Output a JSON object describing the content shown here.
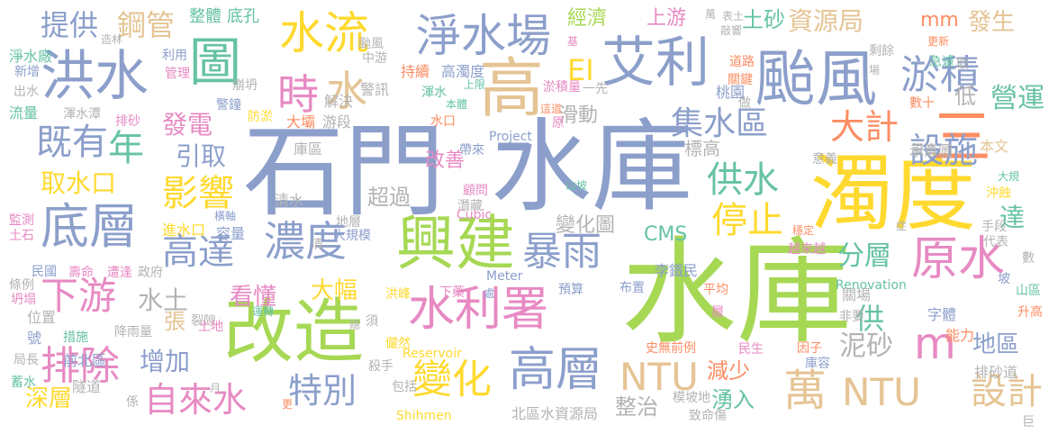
{
  "palette": {
    "blue": "#8c9fcb",
    "green": "#a6d854",
    "yellow": "#ffd92f",
    "orange": "#fc8d62",
    "pink": "#e78ac3",
    "teal": "#66c2a5",
    "tan": "#e5c494",
    "gray": "#b3b3b3"
  },
  "words": [
    {
      "text": "石門",
      "color": "blue"
    },
    {
      "text": "水庫",
      "color": "blue"
    },
    {
      "text": "水庫",
      "color": "green"
    },
    {
      "text": "濁度",
      "color": "yellow"
    },
    {
      "text": "改造",
      "color": "green"
    },
    {
      "text": "興建",
      "color": "green"
    },
    {
      "text": "颱風",
      "color": "blue"
    },
    {
      "text": "艾利",
      "color": "blue"
    },
    {
      "text": "水利署",
      "color": "pink"
    },
    {
      "text": "淨水場",
      "color": "blue"
    },
    {
      "text": "洪水",
      "color": "blue"
    },
    {
      "text": "圖",
      "color": "teal"
    },
    {
      "text": "高",
      "color": "tan"
    },
    {
      "text": "水流",
      "color": "yellow"
    },
    {
      "text": "淤積",
      "color": "blue"
    },
    {
      "text": "底層",
      "color": "blue"
    },
    {
      "text": "原水",
      "color": "pink"
    },
    {
      "text": "m",
      "color": "pink"
    },
    {
      "text": "高層",
      "color": "blue"
    },
    {
      "text": "暴雨",
      "color": "blue"
    },
    {
      "text": "濃度",
      "color": "blue"
    },
    {
      "text": "三",
      "color": "orange"
    },
    {
      "text": "時",
      "color": "pink"
    },
    {
      "text": "水",
      "color": "tan"
    },
    {
      "text": "年",
      "color": "teal"
    },
    {
      "text": "既有",
      "color": "blue"
    },
    {
      "text": "排除",
      "color": "pink"
    },
    {
      "text": "下游",
      "color": "pink"
    },
    {
      "text": "變化",
      "color": "yellow"
    },
    {
      "text": "NTU",
      "color": "tan"
    },
    {
      "text": "NTU",
      "color": "tan"
    },
    {
      "text": "設計",
      "color": "tan"
    },
    {
      "text": "萬",
      "color": "tan"
    },
    {
      "text": "影響",
      "color": "yellow"
    },
    {
      "text": "高達",
      "color": "blue"
    },
    {
      "text": "自來水",
      "color": "pink"
    },
    {
      "text": "特別",
      "color": "blue"
    },
    {
      "text": "停止",
      "color": "yellow"
    },
    {
      "text": "供水",
      "color": "teal"
    },
    {
      "text": "集水區",
      "color": "blue"
    },
    {
      "text": "大計",
      "color": "orange"
    },
    {
      "text": "設施",
      "color": "blue"
    },
    {
      "text": "提供",
      "color": "blue"
    },
    {
      "text": "鋼管",
      "color": "tan"
    },
    {
      "text": "經濟",
      "color": "green"
    },
    {
      "text": "上游",
      "color": "pink"
    },
    {
      "text": "土砂",
      "color": "teal"
    },
    {
      "text": "資源局",
      "color": "tan"
    },
    {
      "text": "mm",
      "color": "orange"
    },
    {
      "text": "發生",
      "color": "tan"
    },
    {
      "text": "發電",
      "color": "pink"
    },
    {
      "text": "引取",
      "color": "blue"
    },
    {
      "text": "取水口",
      "color": "yellow"
    },
    {
      "text": "水土",
      "color": "gray"
    },
    {
      "text": "增加",
      "color": "blue"
    },
    {
      "text": "深層",
      "color": "yellow"
    },
    {
      "text": "看懂",
      "color": "pink"
    },
    {
      "text": "大幅",
      "color": "yellow"
    },
    {
      "text": "分層",
      "color": "teal"
    },
    {
      "text": "泥砂",
      "color": "gray"
    },
    {
      "text": "地區",
      "color": "blue"
    },
    {
      "text": "排砂道",
      "color": "gray"
    },
    {
      "text": "減少",
      "color": "orange"
    },
    {
      "text": "湧入",
      "color": "teal"
    },
    {
      "text": "整治",
      "color": "gray"
    },
    {
      "text": "變化圖",
      "color": "gray"
    },
    {
      "text": "CMS",
      "color": "teal"
    },
    {
      "text": "滑動",
      "color": "gray"
    },
    {
      "text": "營運",
      "color": "teal"
    },
    {
      "text": "達",
      "color": "teal"
    },
    {
      "text": "供",
      "color": "teal"
    },
    {
      "text": "低",
      "color": "gray"
    },
    {
      "text": "EI",
      "color": "yellow"
    },
    {
      "text": "超過",
      "color": "gray"
    },
    {
      "text": "改善",
      "color": "pink"
    },
    {
      "text": "張",
      "color": "tan"
    },
    {
      "text": "標高",
      "color": "gray"
    },
    {
      "text": "Project",
      "color": "blue"
    },
    {
      "text": "Reservoir",
      "color": "yellow"
    },
    {
      "text": "Renovation",
      "color": "teal"
    },
    {
      "text": "Shihmen",
      "color": "yellow"
    },
    {
      "text": "Meter",
      "color": "blue"
    },
    {
      "text": "Cubic",
      "color": "pink"
    },
    {
      "text": "北區水資源局",
      "color": "gray"
    },
    {
      "text": "整體",
      "color": "teal"
    },
    {
      "text": "底孔",
      "color": "teal"
    },
    {
      "text": "淨水廠",
      "color": "teal"
    },
    {
      "text": "新增",
      "color": "blue"
    },
    {
      "text": "出水",
      "color": "gray"
    },
    {
      "text": "流量",
      "color": "teal"
    },
    {
      "text": "渾水潭",
      "color": "gray"
    },
    {
      "text": "排砂",
      "color": "pink"
    },
    {
      "text": "監測",
      "color": "pink"
    },
    {
      "text": "土石",
      "color": "pink"
    },
    {
      "text": "民國",
      "color": "blue"
    },
    {
      "text": "條例",
      "color": "gray"
    },
    {
      "text": "坍塌",
      "color": "pink"
    },
    {
      "text": "位置",
      "color": "gray"
    },
    {
      "text": "號",
      "color": "blue"
    },
    {
      "text": "局長",
      "color": "gray"
    },
    {
      "text": "蓄水",
      "color": "teal"
    },
    {
      "text": "措施",
      "color": "teal"
    },
    {
      "text": "前北區",
      "color": "blue"
    },
    {
      "text": "隧道",
      "color": "gray"
    },
    {
      "text": "降雨量",
      "color": "gray"
    },
    {
      "text": "壽命",
      "color": "pink"
    },
    {
      "text": "遭逢",
      "color": "pink"
    },
    {
      "text": "政府",
      "color": "gray"
    },
    {
      "text": "進水口",
      "color": "yellow"
    },
    {
      "text": "容量",
      "color": "blue"
    },
    {
      "text": "橫軸",
      "color": "blue"
    },
    {
      "text": "清水",
      "color": "gray"
    },
    {
      "text": "解決",
      "color": "gray"
    },
    {
      "text": "防淤",
      "color": "yellow"
    },
    {
      "text": "大壩",
      "color": "orange"
    },
    {
      "text": "游段",
      "color": "gray"
    },
    {
      "text": "庫區",
      "color": "gray"
    },
    {
      "text": "警訊",
      "color": "gray"
    },
    {
      "text": "持續",
      "color": "orange"
    },
    {
      "text": "高濁度",
      "color": "blue"
    },
    {
      "text": "渾水",
      "color": "teal"
    },
    {
      "text": "上限",
      "color": "teal"
    },
    {
      "text": "水口",
      "color": "orange"
    },
    {
      "text": "崩坍",
      "color": "gray"
    },
    {
      "text": "利用",
      "color": "blue"
    },
    {
      "text": "管理",
      "color": "pink"
    },
    {
      "text": "造林",
      "color": "gray"
    },
    {
      "text": "警鐘",
      "color": "blue"
    },
    {
      "text": "颱風",
      "color": "gray"
    },
    {
      "text": "中游",
      "color": "gray"
    },
    {
      "text": "淤積量",
      "color": "pink"
    },
    {
      "text": "一先",
      "color": "gray"
    },
    {
      "text": "這道",
      "color": "orange"
    },
    {
      "text": "原",
      "color": "pink"
    },
    {
      "text": "本體",
      "color": "teal"
    },
    {
      "text": "帶來",
      "color": "blue"
    },
    {
      "text": "顧問",
      "color": "pink"
    },
    {
      "text": "潛藏",
      "color": "gray"
    },
    {
      "text": "山坡",
      "color": "teal"
    },
    {
      "text": "大規模",
      "color": "blue"
    },
    {
      "text": "地層",
      "color": "gray"
    },
    {
      "text": "裂隙",
      "color": "gray"
    },
    {
      "text": "洪峰",
      "color": "yellow"
    },
    {
      "text": "運轉",
      "color": "teal"
    },
    {
      "text": "土地",
      "color": "pink"
    },
    {
      "text": "下藥",
      "color": "pink"
    },
    {
      "text": "須",
      "color": "gray"
    },
    {
      "text": "儼然",
      "color": "yellow"
    },
    {
      "text": "殺手",
      "color": "gray"
    },
    {
      "text": "包括",
      "color": "gray"
    },
    {
      "text": "處",
      "color": "blue"
    },
    {
      "text": "預算",
      "color": "blue"
    },
    {
      "text": "布置",
      "color": "blue"
    },
    {
      "text": "李鐵民",
      "color": "blue"
    },
    {
      "text": "平均",
      "color": "orange"
    },
    {
      "text": "層",
      "color": "pink"
    },
    {
      "text": "史無前例",
      "color": "orange"
    },
    {
      "text": "模坡地",
      "color": "gray"
    },
    {
      "text": "致命傷",
      "color": "gray"
    },
    {
      "text": "民生",
      "color": "pink"
    },
    {
      "text": "庫容",
      "color": "blue"
    },
    {
      "text": "因子",
      "color": "orange"
    },
    {
      "text": "關場",
      "color": "gray"
    },
    {
      "text": "非要",
      "color": "gray"
    },
    {
      "text": "字體",
      "color": "blue"
    },
    {
      "text": "能力",
      "color": "orange"
    },
    {
      "text": "升高",
      "color": "orange"
    },
    {
      "text": "越來越",
      "color": "pink"
    },
    {
      "text": "穩定",
      "color": "orange"
    },
    {
      "text": "意義",
      "color": "gray"
    },
    {
      "text": "設法",
      "color": "gray"
    },
    {
      "text": "本文",
      "color": "tan"
    },
    {
      "text": "大規",
      "color": "teal"
    },
    {
      "text": "沖蝕",
      "color": "yellow"
    },
    {
      "text": "手段",
      "color": "gray"
    },
    {
      "text": "代表",
      "color": "gray"
    },
    {
      "text": "坡",
      "color": "blue"
    },
    {
      "text": "數",
      "color": "gray"
    },
    {
      "text": "山區",
      "color": "teal"
    },
    {
      "text": "示意圖",
      "color": "gray"
    },
    {
      "text": "數十",
      "color": "orange"
    },
    {
      "text": "做",
      "color": "gray"
    },
    {
      "text": "桃園",
      "color": "blue"
    },
    {
      "text": "更新",
      "color": "orange"
    },
    {
      "text": "急遽",
      "color": "teal"
    },
    {
      "text": "剩餘",
      "color": "gray"
    },
    {
      "text": "道路",
      "color": "orange"
    },
    {
      "text": "關鍵",
      "color": "orange"
    },
    {
      "text": "表土",
      "color": "gray"
    },
    {
      "text": "敲響",
      "color": "gray"
    },
    {
      "text": "萬",
      "color": "gray"
    },
    {
      "text": "取",
      "color": "gray"
    },
    {
      "text": "症",
      "color": "gray"
    },
    {
      "text": "基",
      "color": "pink"
    },
    {
      "text": "場",
      "color": "gray"
    },
    {
      "text": "係",
      "color": "gray"
    },
    {
      "text": "清",
      "color": "gray"
    },
    {
      "text": "月",
      "color": "gray"
    },
    {
      "text": "總",
      "color": "gray"
    },
    {
      "text": "巨",
      "color": "gray"
    },
    {
      "text": "更",
      "color": "orange"
    }
  ]
}
